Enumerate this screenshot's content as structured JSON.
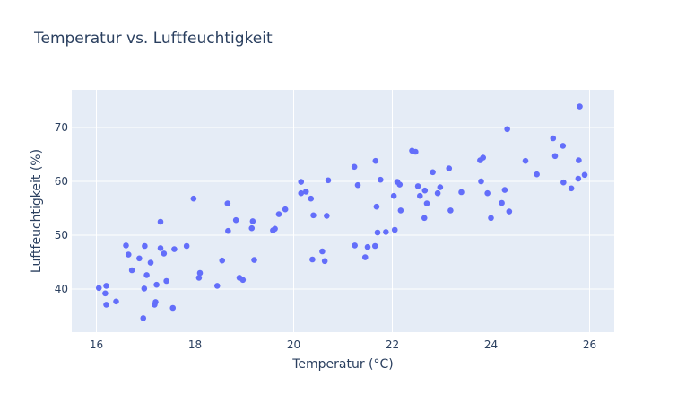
{
  "colors": {
    "plot_bg": "#e5ecf6",
    "grid": "#ffffff",
    "marker": "#636efa",
    "text": "#2a3f5f"
  },
  "chart_data": {
    "type": "scatter",
    "title": "Temperatur vs. Luftfeuchtigkeit",
    "xlabel": "Temperatur (°C)",
    "ylabel": "Luftfeuchtigkeit (%)",
    "xlim": [
      15.5,
      26.5
    ],
    "ylim": [
      32,
      77
    ],
    "x_ticks": [
      16,
      18,
      20,
      22,
      24,
      26
    ],
    "y_ticks": [
      40,
      50,
      60,
      70
    ],
    "grid": true,
    "legend": "none",
    "series": [
      {
        "points": [
          [
            16.05,
            40.2
          ],
          [
            16.18,
            39.2
          ],
          [
            16.2,
            40.6
          ],
          [
            16.2,
            37.1
          ],
          [
            16.4,
            37.7
          ],
          [
            16.6,
            48.1
          ],
          [
            16.65,
            46.4
          ],
          [
            16.72,
            43.5
          ],
          [
            16.87,
            45.7
          ],
          [
            16.95,
            34.6
          ],
          [
            16.97,
            40.1
          ],
          [
            16.98,
            48.0
          ],
          [
            17.02,
            42.6
          ],
          [
            17.1,
            44.9
          ],
          [
            17.18,
            37.1
          ],
          [
            17.2,
            37.6
          ],
          [
            17.22,
            40.8
          ],
          [
            17.3,
            52.5
          ],
          [
            17.3,
            47.6
          ],
          [
            17.37,
            46.6
          ],
          [
            17.42,
            41.5
          ],
          [
            17.55,
            36.5
          ],
          [
            17.58,
            47.4
          ],
          [
            17.83,
            48.0
          ],
          [
            17.97,
            56.8
          ],
          [
            18.08,
            42.1
          ],
          [
            18.1,
            43.0
          ],
          [
            18.45,
            40.6
          ],
          [
            18.55,
            45.3
          ],
          [
            18.66,
            55.9
          ],
          [
            18.67,
            50.8
          ],
          [
            18.83,
            52.8
          ],
          [
            18.9,
            42.1
          ],
          [
            18.97,
            41.7
          ],
          [
            19.15,
            51.3
          ],
          [
            19.17,
            52.6
          ],
          [
            19.2,
            45.4
          ],
          [
            19.58,
            50.9
          ],
          [
            19.62,
            51.2
          ],
          [
            19.7,
            53.9
          ],
          [
            19.83,
            54.8
          ],
          [
            20.15,
            59.9
          ],
          [
            20.15,
            57.8
          ],
          [
            20.25,
            58.1
          ],
          [
            20.35,
            56.8
          ],
          [
            20.38,
            45.5
          ],
          [
            20.4,
            53.7
          ],
          [
            20.58,
            47.0
          ],
          [
            20.63,
            45.2
          ],
          [
            20.67,
            53.6
          ],
          [
            20.7,
            60.2
          ],
          [
            21.23,
            62.7
          ],
          [
            21.24,
            48.1
          ],
          [
            21.3,
            59.3
          ],
          [
            21.45,
            45.9
          ],
          [
            21.5,
            47.8
          ],
          [
            21.65,
            48.0
          ],
          [
            21.66,
            63.8
          ],
          [
            21.68,
            55.3
          ],
          [
            21.7,
            50.5
          ],
          [
            21.76,
            60.3
          ],
          [
            21.87,
            50.6
          ],
          [
            22.03,
            57.3
          ],
          [
            22.05,
            51.0
          ],
          [
            22.1,
            59.9
          ],
          [
            22.15,
            59.4
          ],
          [
            22.17,
            54.6
          ],
          [
            22.4,
            65.7
          ],
          [
            22.47,
            65.5
          ],
          [
            22.52,
            59.1
          ],
          [
            22.56,
            57.3
          ],
          [
            22.65,
            53.2
          ],
          [
            22.66,
            58.3
          ],
          [
            22.7,
            55.9
          ],
          [
            22.82,
            61.7
          ],
          [
            22.92,
            57.8
          ],
          [
            22.97,
            58.9
          ],
          [
            23.15,
            62.4
          ],
          [
            23.18,
            54.6
          ],
          [
            23.4,
            58.0
          ],
          [
            23.78,
            63.9
          ],
          [
            23.8,
            60.0
          ],
          [
            23.84,
            64.4
          ],
          [
            23.93,
            57.8
          ],
          [
            24.0,
            53.2
          ],
          [
            24.22,
            56.0
          ],
          [
            24.28,
            58.4
          ],
          [
            24.33,
            69.7
          ],
          [
            24.37,
            54.4
          ],
          [
            24.7,
            63.8
          ],
          [
            24.93,
            61.3
          ],
          [
            25.26,
            68.0
          ],
          [
            25.3,
            64.7
          ],
          [
            25.46,
            66.6
          ],
          [
            25.47,
            59.8
          ],
          [
            25.63,
            58.7
          ],
          [
            25.77,
            60.5
          ],
          [
            25.78,
            63.9
          ],
          [
            25.8,
            73.9
          ],
          [
            25.9,
            61.2
          ]
        ]
      }
    ]
  }
}
